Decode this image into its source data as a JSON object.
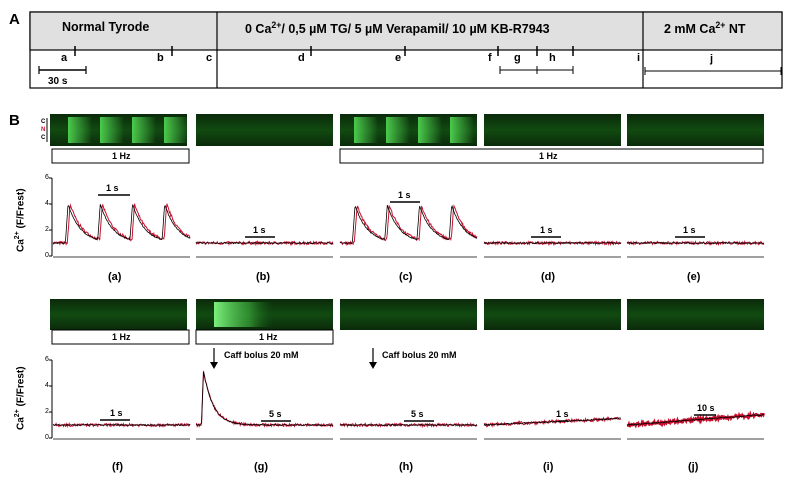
{
  "panel_a_label": "A",
  "panel_b_label": "B",
  "protocol": {
    "segments": [
      "Normal Tyrode",
      "0 Ca2+/ 0,5 µM TG/ 5 µM Verapamil/ 10 µM KB-R7943",
      "2 mM Ca2+ NT"
    ],
    "time_points": [
      "a",
      "b",
      "c",
      "d",
      "e",
      "f",
      "g",
      "h",
      "i",
      "j"
    ],
    "scale_bar": "30 s"
  },
  "stim_labels": {
    "row1_left": "1 Hz",
    "row1_right": "1 Hz",
    "row2_left": "1 Hz",
    "row2_mid": "1 Hz"
  },
  "linescan_letters": [
    "C",
    "N",
    "C"
  ],
  "axis": {
    "ylabel": "Ca2+ (F/Frest)",
    "yticks": [
      "6",
      "4",
      "2",
      "0"
    ]
  },
  "annotations": {
    "caff1": "Caff bolus 20 mM",
    "caff2": "Caff bolus 20 mM"
  },
  "colors": {
    "trace_red": "#c8102e",
    "trace_black": "#000000",
    "header_bg": "#e0e0e0",
    "linescan_bg": "#0b2a0b",
    "linescan_green": "#4fd24f"
  },
  "chart_data": [
    {
      "type": "line",
      "panel": "(a)",
      "scale_bar": "1 s",
      "ylim": [
        0,
        6
      ],
      "transients": 4,
      "peak": 4.0,
      "baseline": 1.0
    },
    {
      "type": "line",
      "panel": "(b)",
      "scale_bar": "1 s",
      "ylim": [
        0,
        6
      ],
      "transients": 0,
      "peak": 1.0,
      "baseline": 1.0
    },
    {
      "type": "line",
      "panel": "(c)",
      "scale_bar": "1 s",
      "ylim": [
        0,
        6
      ],
      "transients": 4,
      "peak": 3.9,
      "baseline": 1.0
    },
    {
      "type": "line",
      "panel": "(d)",
      "scale_bar": "1 s",
      "ylim": [
        0,
        6
      ],
      "transients": 0,
      "peak": 1.0,
      "baseline": 1.0
    },
    {
      "type": "line",
      "panel": "(e)",
      "scale_bar": "1 s",
      "ylim": [
        0,
        6
      ],
      "transients": 0,
      "peak": 1.0,
      "baseline": 1.0
    },
    {
      "type": "line",
      "panel": "(f)",
      "scale_bar": "1 s",
      "ylim": [
        0,
        6
      ],
      "transients": 0,
      "peak": 1.0,
      "baseline": 1.0
    },
    {
      "type": "line",
      "panel": "(g)",
      "scale_bar": "5 s",
      "ylim": [
        0,
        6
      ],
      "transients": 1,
      "peak": 5.2,
      "baseline": 1.0
    },
    {
      "type": "line",
      "panel": "(h)",
      "scale_bar": "5 s",
      "ylim": [
        0,
        6
      ],
      "transients": 0,
      "peak": 1.0,
      "baseline": 1.0
    },
    {
      "type": "line",
      "panel": "(i)",
      "scale_bar": "1 s",
      "ylim": [
        0,
        6
      ],
      "transients": 0,
      "start": 1.0,
      "end": 1.5
    },
    {
      "type": "line",
      "panel": "(j)",
      "scale_bar": "10 s",
      "ylim": [
        0,
        6
      ],
      "transients": 0,
      "start": 1.0,
      "end": 1.8
    }
  ]
}
